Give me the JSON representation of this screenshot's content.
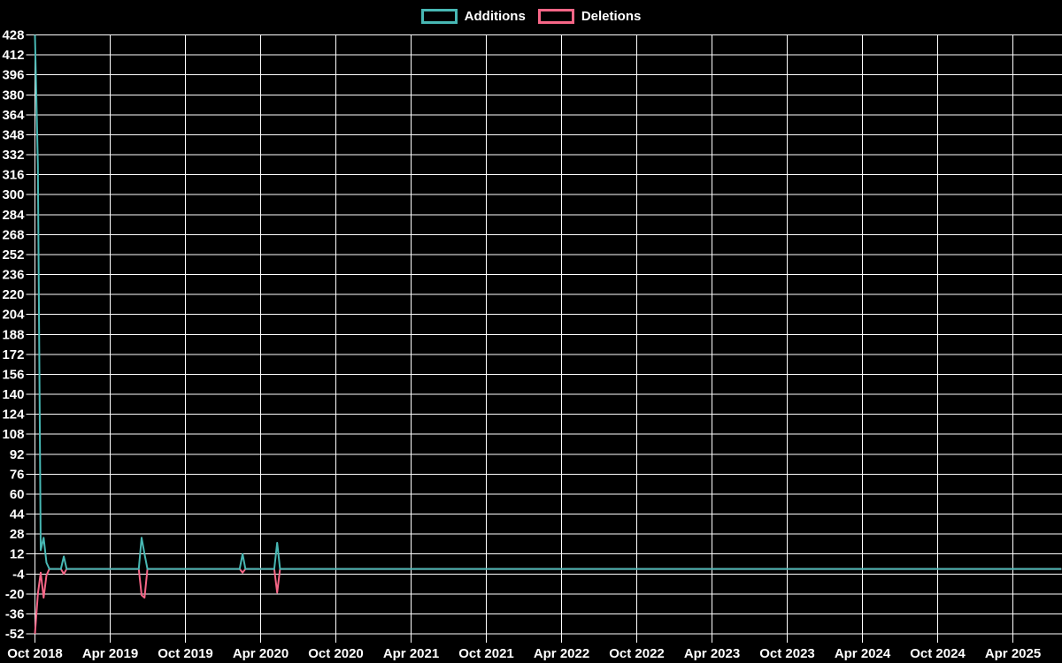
{
  "chart_data": {
    "type": "line",
    "title": "",
    "xlabel": "",
    "ylabel": "",
    "background_color": "#000000",
    "grid_color": "#ffffff",
    "text_color": "#ffffff",
    "grid": true,
    "legend_position": "top-center",
    "legend_labels": [
      "Additions",
      "Deletions"
    ],
    "ylim": [
      -52,
      428
    ],
    "y_tick_step": 16,
    "y_ticks": [
      428,
      412,
      396,
      380,
      364,
      348,
      332,
      316,
      300,
      284,
      268,
      252,
      236,
      220,
      204,
      188,
      172,
      156,
      140,
      124,
      108,
      92,
      76,
      60,
      44,
      28,
      12,
      -4,
      -20,
      -36,
      -52
    ],
    "x_tick_labels": [
      "Oct 2018",
      "Apr 2019",
      "Oct 2019",
      "Apr 2020",
      "Oct 2020",
      "Apr 2021",
      "Oct 2021",
      "Apr 2022",
      "Oct 2022",
      "Apr 2023",
      "Oct 2023",
      "Apr 2024",
      "Oct 2024",
      "Apr 2025"
    ],
    "x_unit": "week_index_from_oct_2018",
    "series": [
      {
        "name": "Additions",
        "color": "#48b8b4",
        "points": [
          [
            0,
            428
          ],
          [
            1,
            324
          ],
          [
            2,
            15
          ],
          [
            3,
            25
          ],
          [
            4,
            5
          ],
          [
            5,
            0
          ],
          [
            9,
            0
          ],
          [
            10,
            10
          ],
          [
            11,
            0
          ],
          [
            36,
            0
          ],
          [
            37,
            25
          ],
          [
            38,
            12
          ],
          [
            39,
            0
          ],
          [
            71,
            0
          ],
          [
            72,
            12
          ],
          [
            73,
            0
          ],
          [
            83,
            0
          ],
          [
            84,
            21
          ],
          [
            85,
            0
          ],
          [
            356,
            0
          ]
        ]
      },
      {
        "name": "Deletions",
        "color": "#f76687",
        "points": [
          [
            0,
            -52
          ],
          [
            1,
            -20
          ],
          [
            2,
            -3
          ],
          [
            3,
            -23
          ],
          [
            4,
            -5
          ],
          [
            5,
            0
          ],
          [
            9,
            0
          ],
          [
            10,
            -4
          ],
          [
            11,
            0
          ],
          [
            36,
            0
          ],
          [
            37,
            -21
          ],
          [
            38,
            -23
          ],
          [
            39,
            0
          ],
          [
            71,
            0
          ],
          [
            72,
            -3
          ],
          [
            73,
            0
          ],
          [
            83,
            0
          ],
          [
            84,
            -19
          ],
          [
            85,
            0
          ],
          [
            356,
            0
          ]
        ]
      }
    ]
  }
}
